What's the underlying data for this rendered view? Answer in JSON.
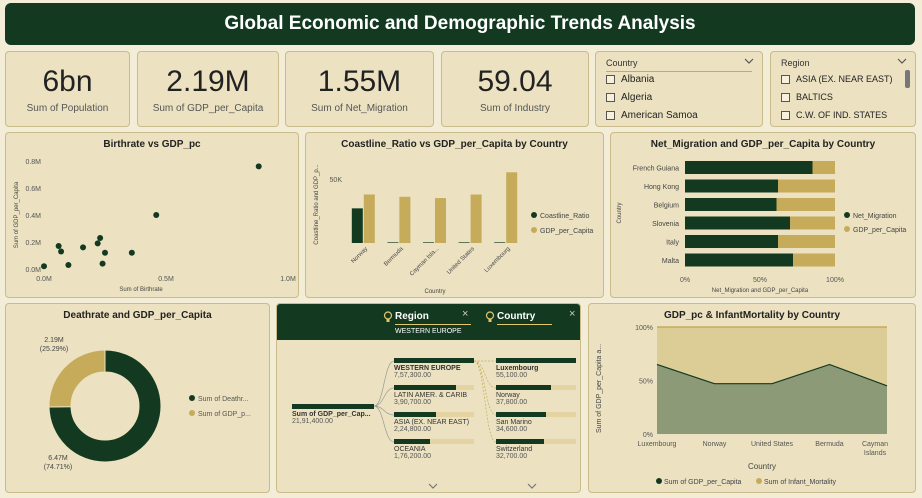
{
  "title": "Global Economic and Demographic Trends Analysis",
  "kpis": [
    {
      "value": "6bn",
      "label": "Sum of Population"
    },
    {
      "value": "2.19M",
      "label": "Sum of GDP_per_Capita"
    },
    {
      "value": "1.55M",
      "label": "Sum of Net_Migration"
    },
    {
      "value": "59.04",
      "label": "Sum of Industry"
    }
  ],
  "country_slicer": {
    "title": "Country",
    "items": [
      "Albania",
      "Algeria",
      "American Samoa"
    ]
  },
  "region_slicer": {
    "title": "Region",
    "items": [
      "ASIA (EX. NEAR EAST)",
      "BALTICS",
      "C.W. OF IND. STATES"
    ]
  },
  "scatter": {
    "title": "Birthrate vs GDP_pc",
    "xlabel": "Sum of Birthrate",
    "ylabel": "Sum of GDP_per_Capita",
    "xticks": [
      "0.0M",
      "0.5M",
      "1.0M"
    ],
    "yticks": [
      "0.0M",
      "0.2M",
      "0.4M",
      "0.6M",
      "0.8M"
    ]
  },
  "coastline": {
    "title": "Coastline_Ratio vs GDP_per_Capita by Country",
    "xlabel": "Country",
    "ylabel": "Coastline_Ratio and GDP_p...",
    "ytick": "50K",
    "legend": [
      "Coastline_Ratio",
      "GDP_per_Capita"
    ]
  },
  "netmig": {
    "title": "Net_Migration and GDP_per_Capita by Country",
    "ylabel": "Country",
    "xlabel": "Net_Migration and GDP_per_Capita",
    "xticks": [
      "0%",
      "50%",
      "100%"
    ],
    "legend": [
      "Net_Migration",
      "GDP_per_Capita"
    ]
  },
  "donut": {
    "title": "Deathrate and GDP_per_Capita",
    "top_label": "2.19M",
    "top_pct": "(25.29%)",
    "bottom_label": "6.47M",
    "bottom_pct": "(74.71%)",
    "legend": [
      "Sum of Deathr...",
      "Sum of GDP_p..."
    ]
  },
  "tree": {
    "region_header": "Region",
    "country_header": "Country",
    "filter_tag": "WESTERN EUROPE",
    "root_label": "Sum of GDP_per_Cap...",
    "root_value": "21,91,400.00",
    "regions": [
      {
        "name": "WESTERN EUROPE",
        "value": "7,57,300.00"
      },
      {
        "name": "LATIN AMER. & CARIB",
        "value": "3,90,700.00"
      },
      {
        "name": "ASIA (EX. NEAR EAST)",
        "value": "2,24,800.00"
      },
      {
        "name": "OCEANIA",
        "value": "1,76,200.00"
      }
    ],
    "countries": [
      {
        "name": "Luxembourg",
        "value": "55,100.00"
      },
      {
        "name": "Norway",
        "value": "37,800.00"
      },
      {
        "name": "San Marino",
        "value": "34,600.00"
      },
      {
        "name": "Switzerland",
        "value": "32,700.00"
      }
    ]
  },
  "area": {
    "title": "GDP_pc & InfantMortality by Country",
    "xlabel": "Country",
    "ylabel": "Sum of GDP_per_Capita a...",
    "yticks": [
      "0%",
      "50%",
      "100%"
    ],
    "legend": [
      "Sum of GDP_per_Capita",
      "Sum of Infant_Mortality"
    ]
  },
  "chart_data": [
    {
      "type": "scatter",
      "title": "Birthrate vs GDP_pc",
      "xlabel": "Sum of Birthrate",
      "ylabel": "Sum of GDP_per_Capita",
      "xlim": [
        0,
        1.0
      ],
      "ylim": [
        0,
        0.8
      ],
      "points": [
        [
          0.0,
          0.02
        ],
        [
          0.06,
          0.17
        ],
        [
          0.07,
          0.13
        ],
        [
          0.1,
          0.03
        ],
        [
          0.16,
          0.16
        ],
        [
          0.22,
          0.19
        ],
        [
          0.23,
          0.23
        ],
        [
          0.24,
          0.04
        ],
        [
          0.25,
          0.12
        ],
        [
          0.36,
          0.12
        ],
        [
          0.46,
          0.4
        ],
        [
          0.88,
          0.76
        ]
      ]
    },
    {
      "type": "bar",
      "title": "Coastline_Ratio vs GDP_per_Capita by Country",
      "categories": [
        "Norway",
        "Bermuda",
        "Cayman Isla...",
        "United States",
        "Luxembourg"
      ],
      "series": [
        {
          "name": "Coastline_Ratio",
          "values": [
            27000,
            500,
            500,
            500,
            500
          ]
        },
        {
          "name": "GDP_per_Capita",
          "values": [
            37800,
            36000,
            35000,
            37800,
            55100
          ]
        }
      ],
      "ylim": [
        0,
        60000
      ]
    },
    {
      "type": "bar",
      "title": "Net_Migration and GDP_per_Capita by Country",
      "categories": [
        "French Guiana",
        "Hong Kong",
        "Belgium",
        "Slovenia",
        "Italy",
        "Malta"
      ],
      "series": [
        {
          "name": "Net_Migration",
          "values": [
            85,
            62,
            61,
            70,
            62,
            72
          ]
        },
        {
          "name": "GDP_per_Capita",
          "values": [
            15,
            38,
            39,
            30,
            38,
            28
          ]
        }
      ],
      "xlim": [
        0,
        100
      ]
    },
    {
      "type": "pie",
      "title": "Deathrate and GDP_per_Capita",
      "labels": [
        "Sum of Deathr...",
        "Sum of GDP_p..."
      ],
      "values": [
        74.71,
        25.29
      ]
    },
    {
      "type": "area",
      "title": "GDP_pc & InfantMortality by Country",
      "categories": [
        "Luxembourg",
        "Norway",
        "United States",
        "Bermuda",
        "Cayman Islands"
      ],
      "series": [
        {
          "name": "Sum of GDP_per_Capita",
          "values": [
            65,
            47,
            47,
            65,
            45
          ]
        },
        {
          "name": "Sum of Infant_Mortality",
          "values": [
            35,
            53,
            53,
            35,
            55
          ]
        }
      ],
      "ylim": [
        0,
        100
      ]
    }
  ],
  "colors": {
    "dark": "#133a21",
    "gold": "#c5ab5a",
    "bg": "#ece2c1",
    "page": "#f3ecd6"
  }
}
